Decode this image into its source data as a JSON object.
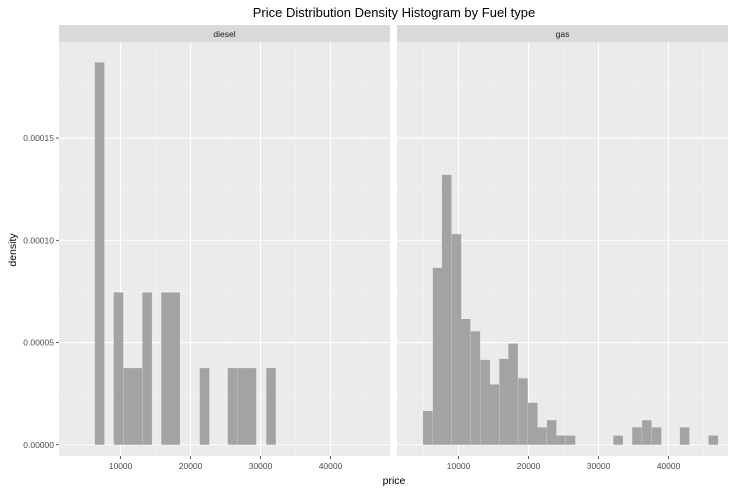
{
  "chart_data": {
    "type": "bar",
    "title": "Price Distribution Density Histogram by Fuel type",
    "xlabel": "price",
    "ylabel": "density",
    "xlim": [
      1200,
      48500
    ],
    "ylim": [
      -5.5e-06,
      0.000197
    ],
    "x_ticks": [
      10000,
      20000,
      30000,
      40000
    ],
    "x_tick_labels": [
      "10000",
      "20000",
      "30000",
      "40000"
    ],
    "y_ticks": [
      0,
      5e-05,
      0.0001,
      0.00015
    ],
    "y_tick_labels": [
      "0.00000",
      "0.00005",
      "0.00010",
      "0.00015"
    ],
    "bin_width": 1360,
    "grid": true,
    "bar_color": "#a3a3a3",
    "panel_bg": "#ebebeb",
    "strip_bg": "#d9d9d9",
    "panels": [
      {
        "label": "diesel",
        "bins": [
          {
            "x": 7000,
            "density": 0.000187
          },
          {
            "x": 9700,
            "density": 7.45e-05
          },
          {
            "x": 11100,
            "density": 3.75e-05
          },
          {
            "x": 12400,
            "density": 3.75e-05
          },
          {
            "x": 13800,
            "density": 7.45e-05
          },
          {
            "x": 16500,
            "density": 7.45e-05
          },
          {
            "x": 17800,
            "density": 7.45e-05
          },
          {
            "x": 22000,
            "density": 3.75e-05
          },
          {
            "x": 26000,
            "density": 3.75e-05
          },
          {
            "x": 27400,
            "density": 3.75e-05
          },
          {
            "x": 28700,
            "density": 3.75e-05
          },
          {
            "x": 31500,
            "density": 3.75e-05
          }
        ]
      },
      {
        "label": "gas",
        "bins": [
          {
            "x": 5600,
            "density": 1.65e-05
          },
          {
            "x": 7000,
            "density": 8.65e-05
          },
          {
            "x": 8300,
            "density": 0.000132
          },
          {
            "x": 9700,
            "density": 0.000103
          },
          {
            "x": 11000,
            "density": 6.15e-05
          },
          {
            "x": 12400,
            "density": 5.55e-05
          },
          {
            "x": 13800,
            "density": 4.15e-05
          },
          {
            "x": 15100,
            "density": 2.95e-05
          },
          {
            "x": 16500,
            "density": 4.2e-05
          },
          {
            "x": 17800,
            "density": 4.95e-05
          },
          {
            "x": 19200,
            "density": 3.25e-05
          },
          {
            "x": 20600,
            "density": 2.05e-05
          },
          {
            "x": 21900,
            "density": 8.5e-06
          },
          {
            "x": 23300,
            "density": 1.2e-05
          },
          {
            "x": 24600,
            "density": 4.5e-06
          },
          {
            "x": 26000,
            "density": 4.5e-06
          },
          {
            "x": 32800,
            "density": 4.5e-06
          },
          {
            "x": 35500,
            "density": 8.5e-06
          },
          {
            "x": 36900,
            "density": 1.2e-05
          },
          {
            "x": 38300,
            "density": 8.5e-06
          },
          {
            "x": 42300,
            "density": 8.5e-06
          },
          {
            "x": 46400,
            "density": 4.5e-06
          }
        ]
      }
    ]
  }
}
